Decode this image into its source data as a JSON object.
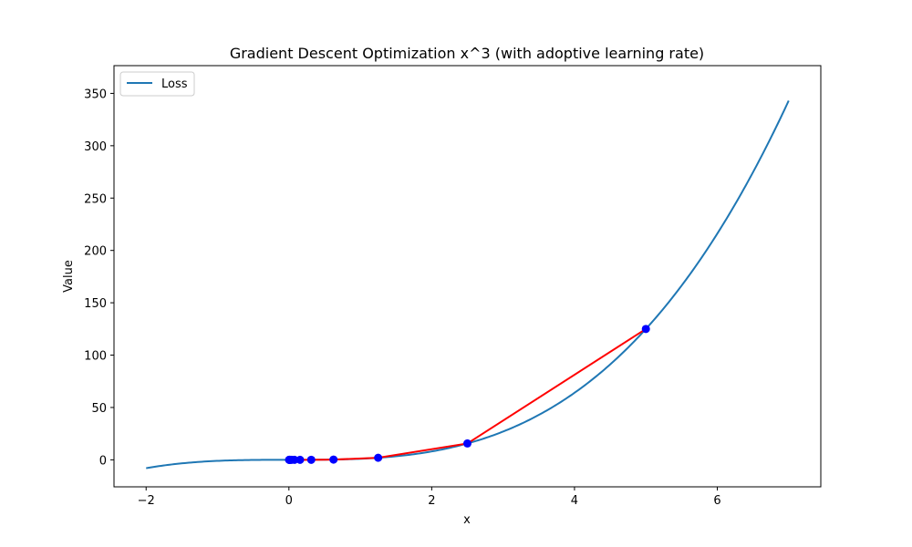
{
  "chart_data": {
    "type": "line",
    "title": "Gradient Descent Optimization x^3 (with adoptive learning rate)",
    "xlabel": "x",
    "ylabel": "Value",
    "xlim": [
      -2.45,
      7.45
    ],
    "ylim": [
      -25.8,
      376.5
    ],
    "x_ticks": [
      -2,
      0,
      2,
      4,
      6
    ],
    "x_tick_labels": [
      "−2",
      "0",
      "2",
      "4",
      "6"
    ],
    "y_ticks": [
      0,
      50,
      100,
      150,
      200,
      250,
      300,
      350
    ],
    "y_tick_labels": [
      "0",
      "50",
      "100",
      "150",
      "200",
      "250",
      "300",
      "350"
    ],
    "grid": false,
    "legend": {
      "placement": "top-left",
      "entries": [
        "Loss"
      ]
    },
    "series": [
      {
        "name": "Loss",
        "kind": "curve",
        "function": "x^3",
        "x_range": [
          -2,
          7
        ],
        "color": "#1f77b4"
      },
      {
        "kind": "path",
        "color": "#ff0000",
        "marker_color": "#0000ff",
        "x": [
          5.0,
          2.5,
          1.25,
          0.625,
          0.3125,
          0.15625,
          0.078125,
          0.0390625,
          0.01953125,
          0.009765625,
          0.0048828125,
          0.00244140625
        ],
        "y": [
          125.0,
          15.625,
          1.953,
          0.244,
          0.0305,
          0.0038,
          0.00048,
          6e-05,
          7.5e-06,
          9e-07,
          0.0,
          0.0
        ]
      }
    ]
  }
}
